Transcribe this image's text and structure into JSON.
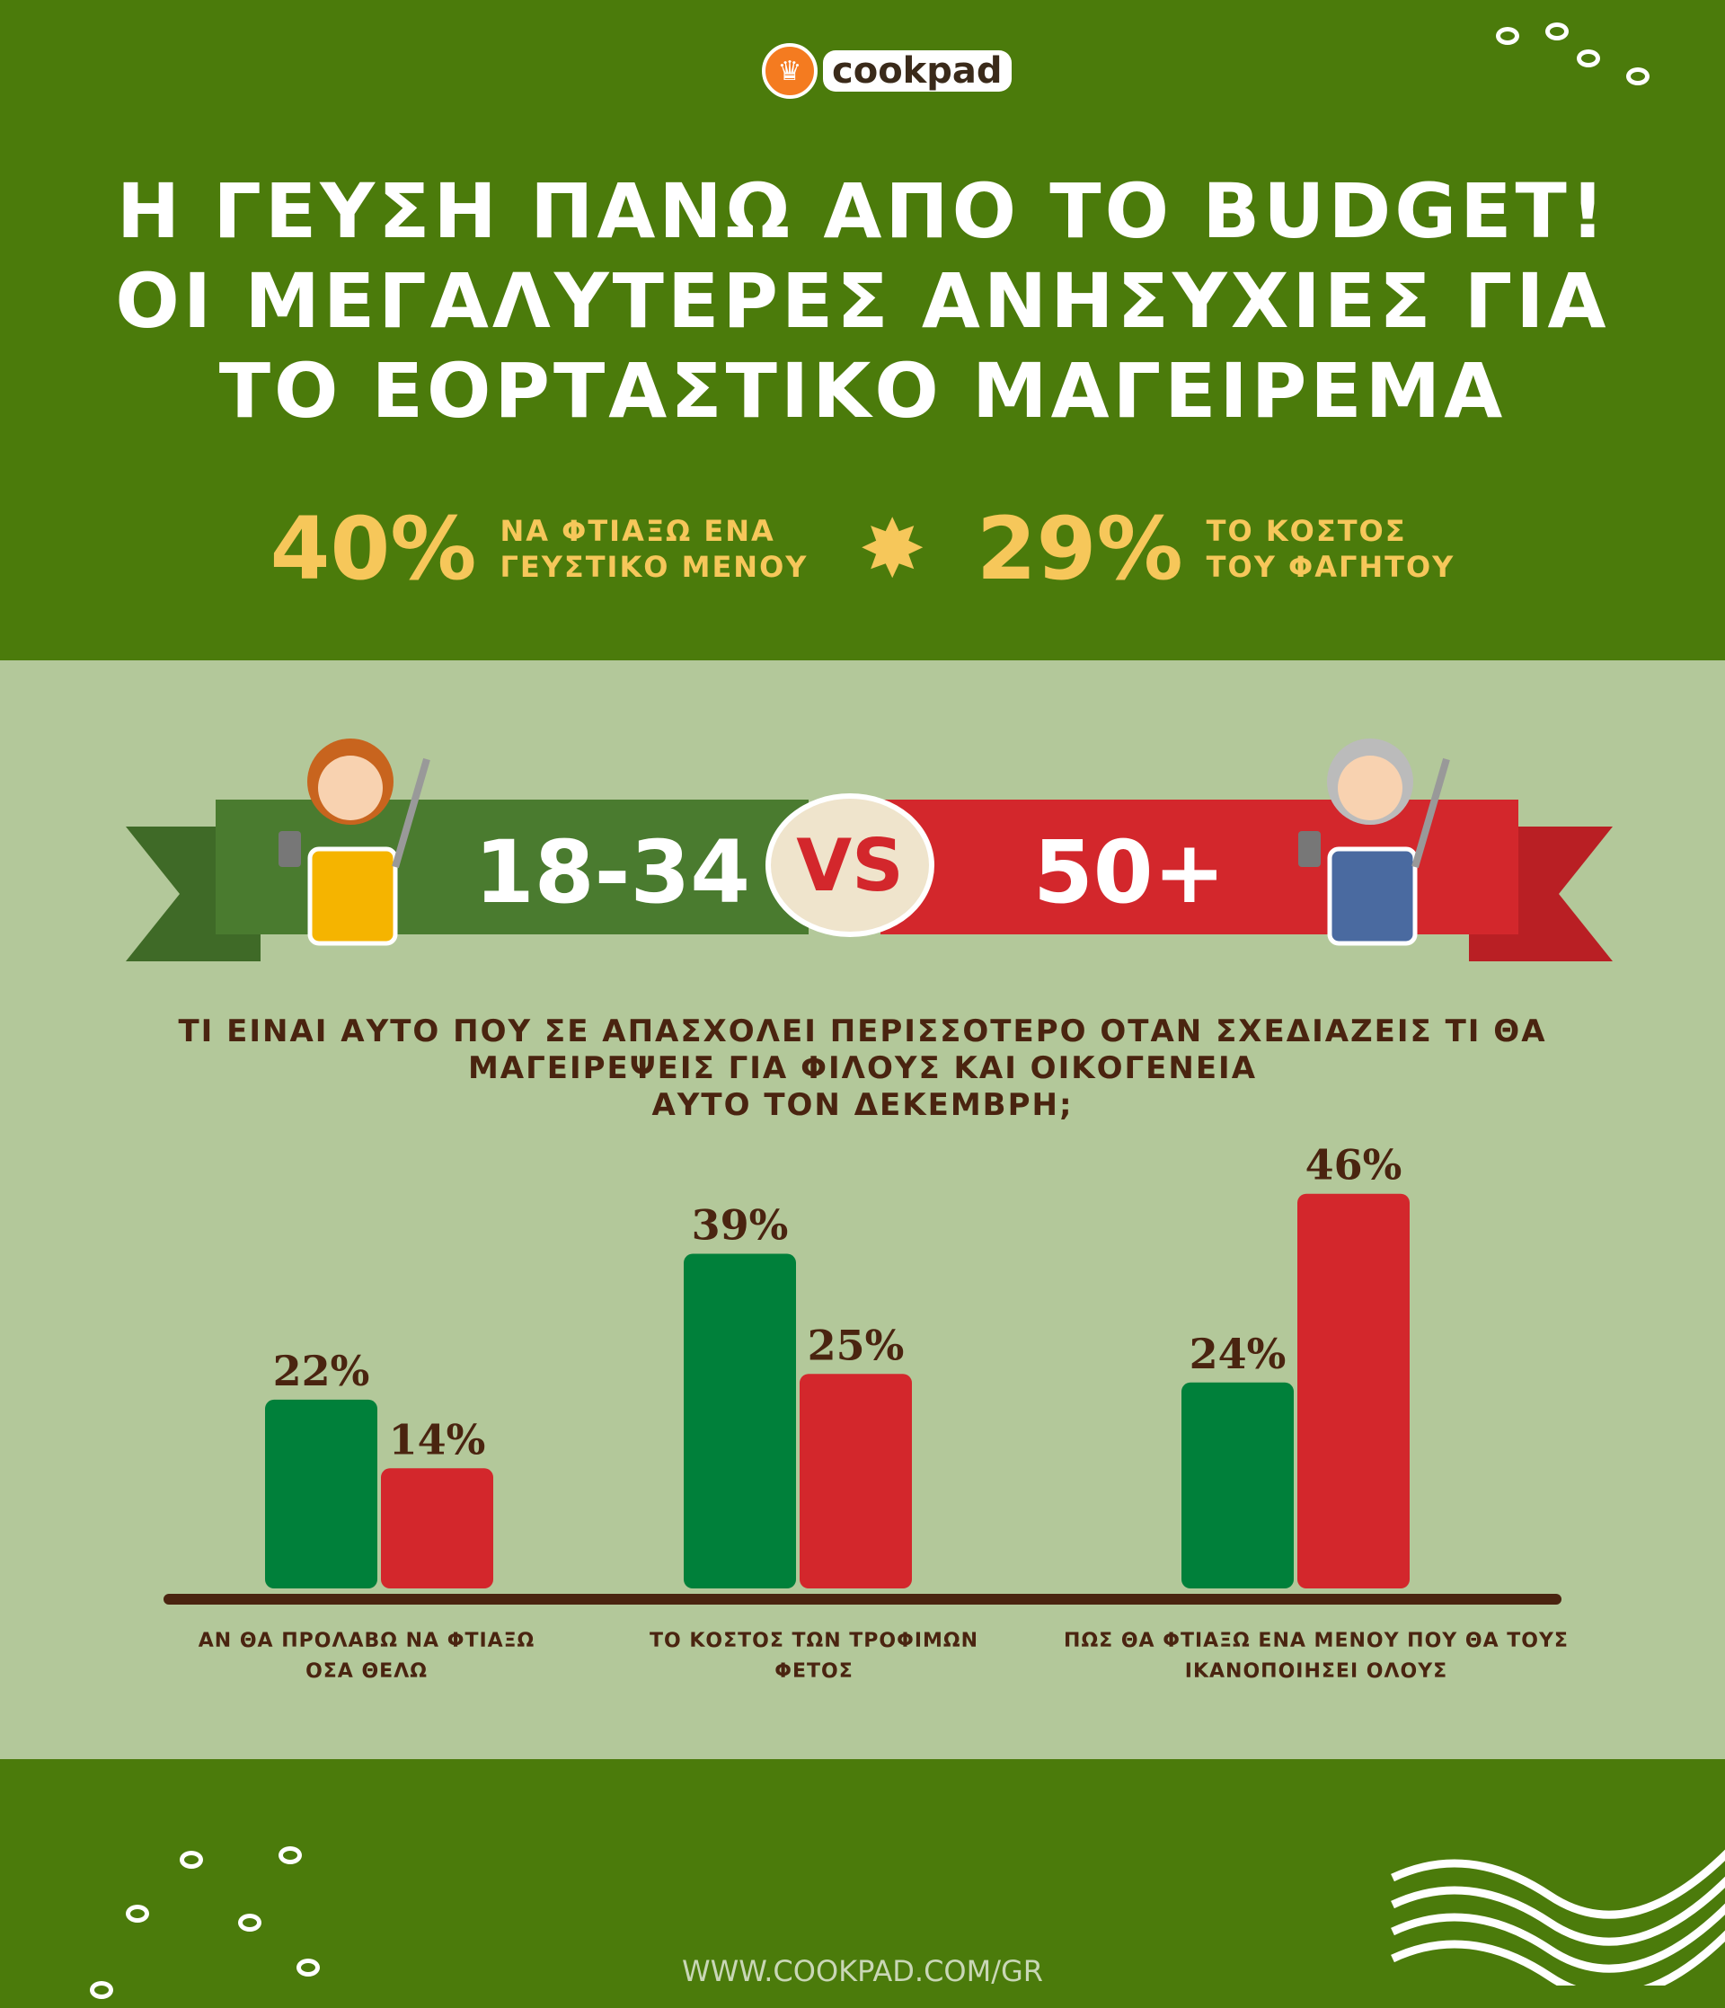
{
  "logo": {
    "text": "cookpad"
  },
  "title": {
    "lines": [
      "Η ΓΕΥΣΗ ΠΑΝΩ ΑΠΟ ΤΟ BUDGET!",
      "ΟΙ ΜΕΓΑΛΥΤΕΡΕΣ ΑΝΗΣΥΧΙΕΣ ΓΙΑ",
      "ΤΟ ΕΟΡΤΑΣΤΙΚΟ ΜΑΓΕΙΡΕΜΑ"
    ]
  },
  "stats": [
    {
      "value": "40%",
      "label_1": "ΝΑ ΦΤΙΑΞΩ ΕΝΑ",
      "label_2": "ΓΕΥΣΤΙΚΟ ΜΕΝΟΥ"
    },
    {
      "value": "29%",
      "label_1": "ΤΟ ΚΟΣΤΟΣ",
      "label_2": "ΤΟΥ ΦΑΓΗΤΟΥ"
    }
  ],
  "banner": {
    "left": "18-34",
    "vs": "VS",
    "right": "50+"
  },
  "colors": {
    "green": "#00803a",
    "red": "#d3272c",
    "text": "#4a2410",
    "bg_dark": "#4b7b0b",
    "bg_light": "#b3c89a"
  },
  "chart_data": {
    "type": "bar",
    "title": "ΤΙ ΕΙΝΑΙ ΑΥΤΟ ΠΟΥ ΣΕ ΑΠΑΣΧΟΛΕΙ ΠΕΡΙΣΣΟΤΕΡΟ ΟΤΑΝ ΣΧΕΔΙΑΖΕΙΣ ΤΙ ΘΑ ΜΑΓΕΙΡΕΨΕΙΣ ΓΙΑ ΦΙΛΟΥΣ ΚΑΙ ΟΙΚΟΓΕΝΕΙΑ ΑΥΤΟ ΤΟΝ ΔΕΚΕΜΒΡΗ;",
    "title_lines": [
      "ΤΙ ΕΙΝΑΙ ΑΥΤΟ ΠΟΥ ΣΕ ΑΠΑΣΧΟΛΕΙ ΠΕΡΙΣΣΟΤΕΡΟ ΟΤΑΝ ΣΧΕΔΙΑΖΕΙΣ ΤΙ ΘΑ",
      "ΜΑΓΕΙΡΕΨΕΙΣ ΓΙΑ ΦΙΛΟΥΣ ΚΑΙ ΟΙΚΟΓΕΝΕΙΑ",
      "ΑΥΤΟ ΤΟΝ ΔΕΚΕΜΒΡΗ;"
    ],
    "categories": [
      {
        "line1": "ΑΝ ΘΑ ΠΡΟΛΑΒΩ ΝΑ ΦΤΙΑΞΩ",
        "line2": "ΟΣΑ ΘΕΛΩ"
      },
      {
        "line1": "ΤΟ ΚΟΣΤΟΣ ΤΩΝ ΤΡΟΦΙΜΩΝ",
        "line2": "ΦΕΤΟΣ"
      },
      {
        "line1": "ΠΩΣ ΘΑ ΦΤΙΑΞΩ ΕΝΑ ΜΕΝΟΥ ΠΟΥ ΘΑ ΤΟΥΣ",
        "line2": "ΙΚΑΝΟΠΟΙΗΣΕΙ ΟΛΟΥΣ"
      }
    ],
    "series": [
      {
        "name": "18-34",
        "color": "#00803a",
        "values": [
          22,
          39,
          24
        ]
      },
      {
        "name": "50+",
        "color": "#d3272c",
        "values": [
          14,
          25,
          46
        ]
      }
    ],
    "ylim": [
      0,
      50
    ],
    "value_suffix": "%"
  },
  "footer": {
    "url": "WWW.COOKPAD.COM/GR"
  }
}
